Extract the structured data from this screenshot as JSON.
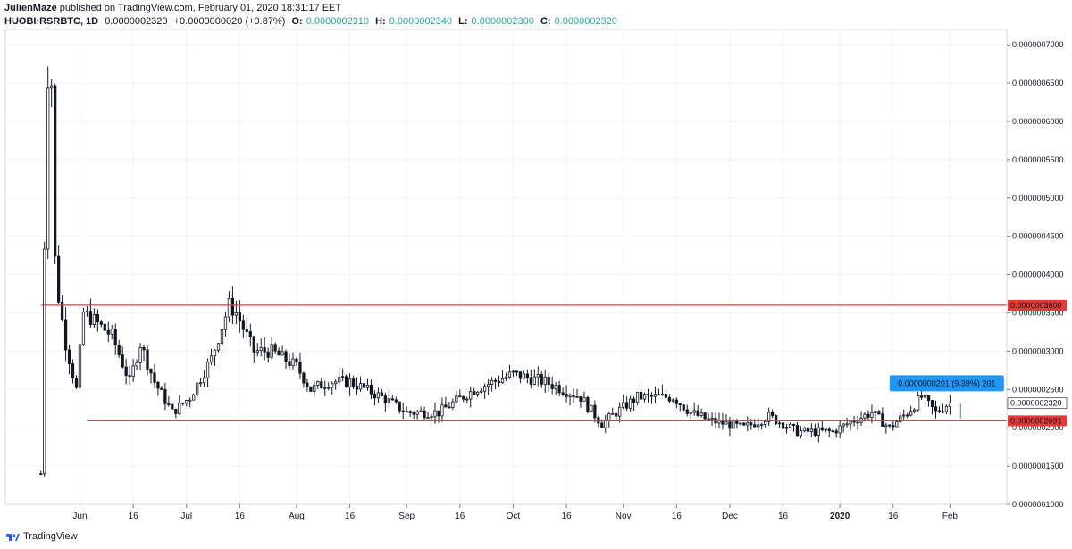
{
  "header": {
    "line1": "JulienMaze published on TradingView.com, February 01, 2020 18:31:17 EET",
    "author": "JulienMaze",
    "published": "published on TradingView.com, February 01, 2020 18:31:17 EET",
    "symbol": "HUOBI:RSRBTC, 1D",
    "last": "0.0000002320",
    "change": "+0.0000000020 (+0.87%)",
    "o_label": "O:",
    "o_value": "0.0000002310",
    "h_label": "H:",
    "h_value": "0.0000002340",
    "l_label": "L:",
    "l_value": "0.0000002300",
    "c_label": "C:",
    "c_value": "0.0000002320"
  },
  "footer": {
    "brand": "TradingView"
  },
  "colors": {
    "level_line": "#e53935",
    "label_bg": "#e53935",
    "measure_bg": "#2196f3",
    "candle_down": "#131722",
    "candle_up": "#ffffff",
    "grid": "#f0f3fa"
  },
  "chart_data": {
    "type": "candlestick",
    "y_scale": "linear",
    "ylim": [
      1e-07,
      7.2e-07
    ],
    "y_ticks": [
      {
        "value": 7e-07,
        "label": "0.0000007000"
      },
      {
        "value": 6.5e-07,
        "label": "0.0000006500"
      },
      {
        "value": 6e-07,
        "label": "0.0000006000"
      },
      {
        "value": 5.5e-07,
        "label": "0.0000005500"
      },
      {
        "value": 5e-07,
        "label": "0.0000005000"
      },
      {
        "value": 4.5e-07,
        "label": "0.0000004500"
      },
      {
        "value": 4e-07,
        "label": "0.0000004000"
      },
      {
        "value": 3.5e-07,
        "label": "0.0000003500"
      },
      {
        "value": 3e-07,
        "label": "0.0000003000"
      },
      {
        "value": 2.5e-07,
        "label": "0.0000002500"
      },
      {
        "value": 2e-07,
        "label": "0.0000002000"
      },
      {
        "value": 1.5e-07,
        "label": "0.0000001500"
      },
      {
        "value": 1e-07,
        "label": "0.0000001000"
      }
    ],
    "x_ticks": [
      {
        "date": "2019-06-01",
        "label": "Jun"
      },
      {
        "date": "2019-06-16",
        "label": "16"
      },
      {
        "date": "2019-07-01",
        "label": "Jul"
      },
      {
        "date": "2019-07-16",
        "label": "16"
      },
      {
        "date": "2019-08-01",
        "label": "Aug"
      },
      {
        "date": "2019-08-16",
        "label": "16"
      },
      {
        "date": "2019-09-01",
        "label": "Sep"
      },
      {
        "date": "2019-09-16",
        "label": "16"
      },
      {
        "date": "2019-10-01",
        "label": "Oct"
      },
      {
        "date": "2019-10-16",
        "label": "16"
      },
      {
        "date": "2019-11-01",
        "label": "Nov"
      },
      {
        "date": "2019-11-16",
        "label": "16"
      },
      {
        "date": "2019-12-01",
        "label": "Dec"
      },
      {
        "date": "2019-12-16",
        "label": "16"
      },
      {
        "date": "2020-01-01",
        "label": "2020"
      },
      {
        "date": "2020-01-16",
        "label": "16"
      },
      {
        "date": "2020-02-01",
        "label": "Feb"
      }
    ],
    "x_range": [
      "2019-05-11",
      "2020-02-17"
    ],
    "levels": [
      {
        "value": 3.6e-07,
        "label": "0.0000003600",
        "start": "2019-05-21"
      },
      {
        "value": 2.091e-07,
        "label": "0.0000002091",
        "start": "2019-06-03"
      }
    ],
    "last_price": {
      "value": 2.32e-07,
      "label": "0.0000002320"
    },
    "measure_label": "0.0000000201 (9.39%) 201",
    "anchors": [
      {
        "date": "2019-05-21",
        "price": 1.4e-07
      },
      {
        "date": "2019-05-22",
        "price": 4.4e-07
      },
      {
        "date": "2019-05-23",
        "price": 6.6e-07
      },
      {
        "date": "2019-05-24",
        "price": 6.5e-07
      },
      {
        "date": "2019-05-25",
        "price": 4.2e-07
      },
      {
        "date": "2019-05-26",
        "price": 3.7e-07
      },
      {
        "date": "2019-05-28",
        "price": 3.1e-07
      },
      {
        "date": "2019-05-31",
        "price": 2.5e-07
      },
      {
        "date": "2019-06-02",
        "price": 3.5e-07
      },
      {
        "date": "2019-06-05",
        "price": 3.4e-07
      },
      {
        "date": "2019-06-10",
        "price": 3.2e-07
      },
      {
        "date": "2019-06-15",
        "price": 2.6e-07
      },
      {
        "date": "2019-06-18",
        "price": 3.1e-07
      },
      {
        "date": "2019-06-22",
        "price": 2.6e-07
      },
      {
        "date": "2019-06-27",
        "price": 2.2e-07
      },
      {
        "date": "2019-07-02",
        "price": 2.4e-07
      },
      {
        "date": "2019-07-08",
        "price": 2.9e-07
      },
      {
        "date": "2019-07-13",
        "price": 3.6e-07
      },
      {
        "date": "2019-07-15",
        "price": 3.5e-07
      },
      {
        "date": "2019-07-20",
        "price": 3e-07
      },
      {
        "date": "2019-07-25",
        "price": 3e-07
      },
      {
        "date": "2019-08-01",
        "price": 2.8e-07
      },
      {
        "date": "2019-08-05",
        "price": 2.5e-07
      },
      {
        "date": "2019-08-10",
        "price": 2.6e-07
      },
      {
        "date": "2019-08-16",
        "price": 2.6e-07
      },
      {
        "date": "2019-08-25",
        "price": 2.4e-07
      },
      {
        "date": "2019-09-01",
        "price": 2.2e-07
      },
      {
        "date": "2019-09-10",
        "price": 2.2e-07
      },
      {
        "date": "2019-09-20",
        "price": 2.5e-07
      },
      {
        "date": "2019-10-01",
        "price": 2.7e-07
      },
      {
        "date": "2019-10-10",
        "price": 2.6e-07
      },
      {
        "date": "2019-10-20",
        "price": 2.4e-07
      },
      {
        "date": "2019-10-26",
        "price": 2.05e-07
      },
      {
        "date": "2019-10-30",
        "price": 2.2e-07
      },
      {
        "date": "2019-11-05",
        "price": 2.4e-07
      },
      {
        "date": "2019-11-15",
        "price": 2.4e-07
      },
      {
        "date": "2019-11-20",
        "price": 2.2e-07
      },
      {
        "date": "2019-11-25",
        "price": 2.1e-07
      },
      {
        "date": "2019-12-05",
        "price": 2e-07
      },
      {
        "date": "2019-12-12",
        "price": 2.15e-07
      },
      {
        "date": "2019-12-20",
        "price": 1.95e-07
      },
      {
        "date": "2019-12-30",
        "price": 1.95e-07
      },
      {
        "date": "2020-01-05",
        "price": 2.1e-07
      },
      {
        "date": "2020-01-10",
        "price": 2.2e-07
      },
      {
        "date": "2020-01-15",
        "price": 2e-07
      },
      {
        "date": "2020-01-20",
        "price": 2.2e-07
      },
      {
        "date": "2020-01-24",
        "price": 2.4e-07
      },
      {
        "date": "2020-01-28",
        "price": 2.2e-07
      },
      {
        "date": "2020-01-31",
        "price": 2.3e-07
      },
      {
        "date": "2020-02-01",
        "price": 2.32e-07
      }
    ]
  }
}
